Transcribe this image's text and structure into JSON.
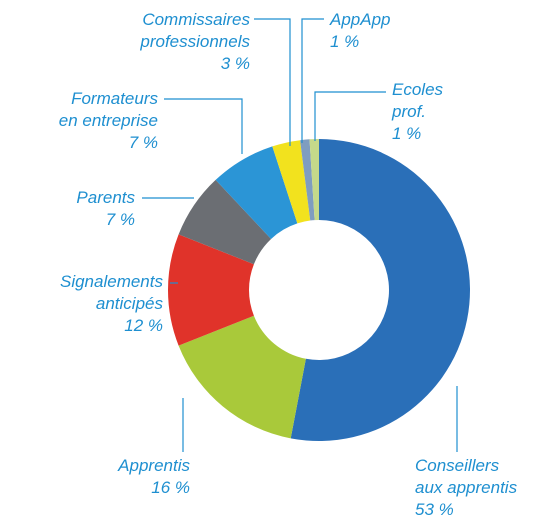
{
  "chart_data": {
    "type": "donut",
    "categories": [
      "Conseillers\naux apprentis",
      "Apprentis",
      "Signalements\nanticipés",
      "Parents",
      "Formateurs\nen entreprise",
      "Commissaires\nprofessionnels",
      "AppApp",
      "Ecoles\nprof."
    ],
    "values": [
      53,
      16,
      12,
      7,
      7,
      3,
      1,
      1
    ],
    "value_labels": [
      "53 %",
      "16 %",
      "12 %",
      "7 %",
      "7 %",
      "3 %",
      "1 %",
      "1 %"
    ],
    "colors": [
      "#2a6fb8",
      "#a9c93a",
      "#e0332a",
      "#6b6e73",
      "#2b95d6",
      "#f2e21e",
      "#7f9dc0",
      "#c5d98a"
    ]
  }
}
